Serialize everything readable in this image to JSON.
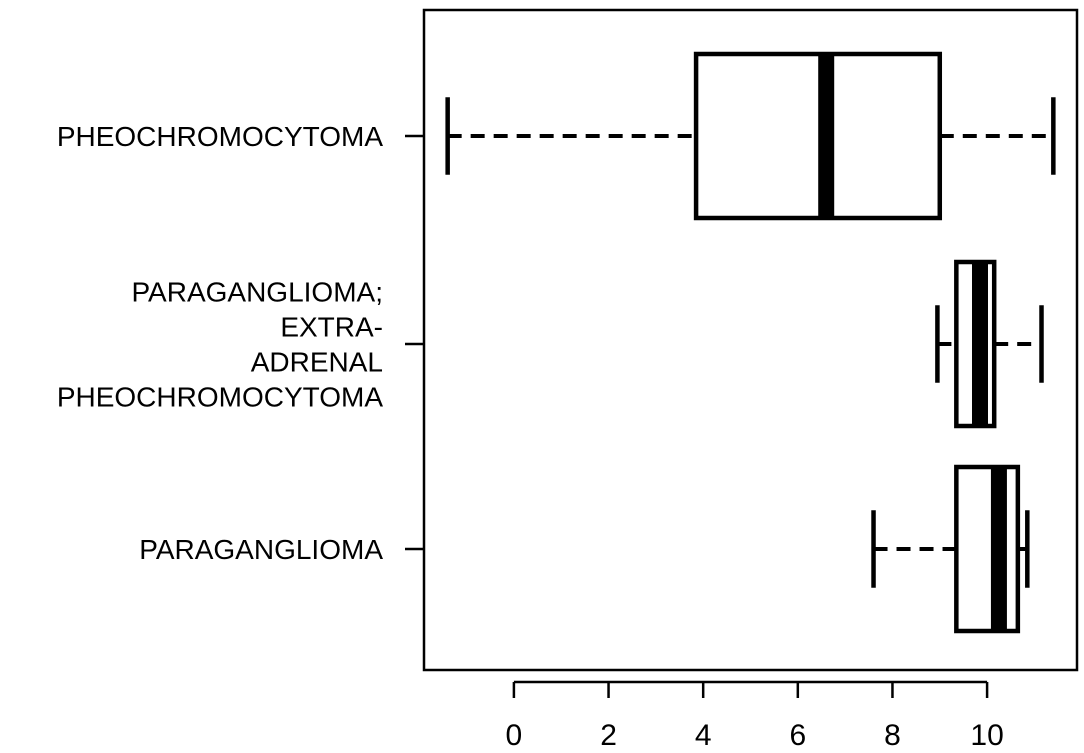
{
  "chart_data": {
    "type": "boxplot",
    "orientation": "horizontal",
    "title": "",
    "xlabel": "",
    "ylabel": "",
    "xlim": [
      -1.9,
      11.9
    ],
    "x_ticks": [
      0,
      2,
      4,
      6,
      8,
      10
    ],
    "grid": false,
    "legend": "none",
    "categories": [
      {
        "label_lines": [
          "PHEOCHROMOCYTOMA"
        ],
        "whisker_low": -1.4,
        "q1": 3.85,
        "median": 6.6,
        "q3": 9.0,
        "whisker_high": 11.4
      },
      {
        "label_lines": [
          "PARAGANGLIOMA;",
          "EXTRA-",
          "ADRENAL",
          "PHEOCHROMOCYTOMA"
        ],
        "whisker_low": 8.95,
        "q1": 9.35,
        "median": 9.85,
        "q3": 10.15,
        "whisker_high": 11.15
      },
      {
        "label_lines": [
          "PARAGANGLIOMA"
        ],
        "whisker_low": 7.6,
        "q1": 9.35,
        "median": 10.25,
        "q3": 10.65,
        "whisker_high": 10.85
      }
    ]
  }
}
